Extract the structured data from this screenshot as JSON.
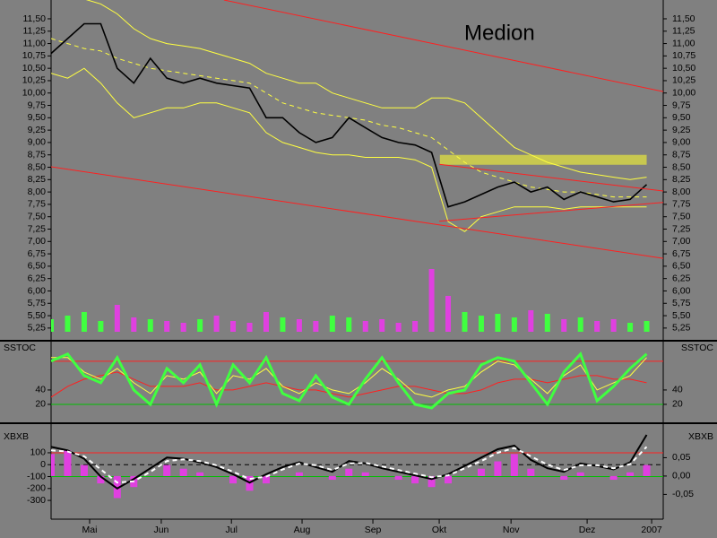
{
  "chart_data": [
    {
      "type": "line",
      "title": "Medion",
      "title_color": "#ff1010",
      "x": [
        0,
        1,
        2,
        3,
        4,
        5,
        6,
        7,
        8,
        9,
        10,
        11,
        12,
        13,
        14,
        15,
        16,
        17,
        18,
        19,
        20,
        21,
        22,
        23,
        24,
        25,
        26,
        27,
        28,
        29,
        30,
        31,
        32,
        33,
        34,
        35,
        36
      ],
      "xlim": [
        0,
        37
      ],
      "ylim": [
        5.03,
        11.88
      ],
      "yticks": [
        {
          "value": 5.25,
          "label": "5,25"
        },
        {
          "value": 5.5,
          "label": "5,50"
        },
        {
          "value": 5.75,
          "label": "5,75"
        },
        {
          "value": 6.0,
          "label": "6,00"
        },
        {
          "value": 6.25,
          "label": "6,25"
        },
        {
          "value": 6.5,
          "label": "6,50"
        },
        {
          "value": 6.75,
          "label": "6,75"
        },
        {
          "value": 7.0,
          "label": "7,00"
        },
        {
          "value": 7.25,
          "label": "7,25"
        },
        {
          "value": 7.5,
          "label": "7,50"
        },
        {
          "value": 7.75,
          "label": "7,75"
        },
        {
          "value": 8.0,
          "label": "8,00"
        },
        {
          "value": 8.25,
          "label": "8,25"
        },
        {
          "value": 8.5,
          "label": "8,50"
        },
        {
          "value": 8.75,
          "label": "8,75"
        },
        {
          "value": 9.0,
          "label": "9,00"
        },
        {
          "value": 9.25,
          "label": "9,25"
        },
        {
          "value": 9.5,
          "label": "9,50"
        },
        {
          "value": 9.75,
          "label": "9,75"
        },
        {
          "value": 10.0,
          "label": "10,00"
        },
        {
          "value": 10.25,
          "label": "10,25"
        },
        {
          "value": 10.5,
          "label": "10,50"
        },
        {
          "value": 10.75,
          "label": "10,75"
        },
        {
          "value": 11.0,
          "label": "11,00"
        },
        {
          "value": 11.25,
          "label": "11,25"
        },
        {
          "value": 11.5,
          "label": "11,50"
        }
      ],
      "zones": [
        {
          "x": [
            23.5,
            36.0
          ],
          "y": [
            8.55,
            8.75
          ],
          "color": "#c8c850"
        }
      ],
      "series": [
        {
          "color": "#ffff40",
          "values": [
            11.9,
            11.9,
            11.9,
            11.8,
            11.6,
            11.3,
            11.1,
            11.0,
            10.95,
            10.9,
            10.8,
            10.7,
            10.6,
            10.4,
            10.3,
            10.2,
            10.2,
            10.0,
            9.9,
            9.8,
            9.7,
            9.7,
            9.7,
            9.9,
            9.9,
            9.8,
            9.5,
            9.2,
            8.9,
            8.75,
            8.6,
            8.5,
            8.4,
            8.35,
            8.3,
            8.25,
            8.3
          ]
        },
        {
          "color": "#ffff40",
          "values": [
            10.4,
            10.3,
            10.5,
            10.2,
            9.8,
            9.5,
            9.6,
            9.7,
            9.7,
            9.8,
            9.8,
            9.7,
            9.6,
            9.2,
            9.0,
            8.9,
            8.8,
            8.75,
            8.75,
            8.7,
            8.7,
            8.7,
            8.65,
            8.5,
            7.4,
            7.2,
            7.5,
            7.6,
            7.7,
            7.7,
            7.7,
            7.65,
            7.7,
            7.7,
            7.7,
            7.7,
            7.7
          ]
        },
        {
          "color": "#ffff40",
          "dash": true,
          "values": [
            11.1,
            11.0,
            10.9,
            10.85,
            10.7,
            10.6,
            10.5,
            10.45,
            10.4,
            10.35,
            10.3,
            10.25,
            10.2,
            10.0,
            9.8,
            9.7,
            9.6,
            9.55,
            9.5,
            9.45,
            9.35,
            9.3,
            9.2,
            9.1,
            8.85,
            8.6,
            8.4,
            8.3,
            8.2,
            8.1,
            8.05,
            8.0,
            8.0,
            7.95,
            7.9,
            7.9,
            7.9
          ]
        },
        {
          "color": "#000000",
          "width": 1.6,
          "values": [
            10.8,
            11.1,
            11.4,
            11.4,
            10.5,
            10.2,
            10.7,
            10.3,
            10.2,
            10.3,
            10.2,
            10.15,
            10.1,
            9.5,
            9.5,
            9.2,
            9.0,
            9.1,
            9.5,
            9.3,
            9.1,
            9.0,
            8.95,
            8.8,
            7.7,
            7.8,
            7.95,
            8.1,
            8.2,
            8.0,
            8.1,
            7.85,
            8.0,
            7.9,
            7.8,
            7.85,
            8.15
          ]
        },
        {
          "color": "#ff2020",
          "x": [
            10.45,
            37
          ],
          "values": [
            11.88,
            10.03
          ]
        },
        {
          "color": "#ff2020",
          "x": [
            0,
            37
          ],
          "values": [
            8.51,
            6.66
          ]
        },
        {
          "color": "#ff2020",
          "x": [
            23.46,
            37
          ],
          "values": [
            8.56,
            8.02
          ]
        },
        {
          "color": "#ff2020",
          "x": [
            23.46,
            37
          ],
          "values": [
            7.41,
            7.79
          ]
        }
      ],
      "volume": {
        "up_color": "#40ff40",
        "down_color": "#e040e0",
        "values": [
          14,
          18,
          22,
          12,
          30,
          16,
          14,
          12,
          10,
          14,
          18,
          12,
          10,
          22,
          16,
          14,
          12,
          18,
          16,
          12,
          14,
          10,
          12,
          70,
          40,
          22,
          18,
          20,
          16,
          24,
          20,
          14,
          16,
          12,
          14,
          10,
          12
        ]
      }
    },
    {
      "type": "line",
      "label": "SSTOC",
      "ylim": [
        -3.75,
        106
      ],
      "yticks": [
        20,
        40
      ],
      "levels": [
        {
          "value": 80,
          "color": "#ff2020"
        },
        {
          "value": 20,
          "color": "#00c000"
        }
      ],
      "series": [
        {
          "color": "#ff2020",
          "values": [
            30,
            45,
            55,
            60,
            65,
            55,
            45,
            45,
            45,
            50,
            40,
            40,
            45,
            50,
            45,
            40,
            40,
            35,
            30,
            35,
            40,
            45,
            45,
            40,
            35,
            35,
            40,
            50,
            55,
            55,
            50,
            55,
            60,
            60,
            55,
            55,
            50
          ]
        },
        {
          "color": "#ffff40",
          "values": [
            85,
            85,
            65,
            55,
            70,
            50,
            35,
            60,
            55,
            65,
            35,
            60,
            55,
            70,
            45,
            35,
            50,
            40,
            35,
            50,
            70,
            55,
            35,
            30,
            40,
            45,
            65,
            80,
            75,
            55,
            35,
            60,
            75,
            40,
            50,
            60,
            85
          ]
        },
        {
          "color": "#40ff40",
          "width": 3,
          "values": [
            80,
            90,
            60,
            50,
            85,
            40,
            20,
            70,
            50,
            75,
            20,
            75,
            50,
            85,
            35,
            25,
            60,
            30,
            20,
            55,
            85,
            50,
            20,
            15,
            35,
            40,
            75,
            85,
            80,
            50,
            20,
            65,
            90,
            25,
            45,
            70,
            90
          ]
        }
      ]
    },
    {
      "type": "line",
      "label": "XBXB",
      "ylim": [
        -450,
        333
      ],
      "yticks": [
        100,
        0,
        -100,
        -200,
        -300
      ],
      "y2lim": [
        -0.115,
        0.139
      ],
      "y2ticks": [
        {
          "value": 0.05,
          "label": "0,05"
        },
        {
          "value": 0.0,
          "label": "0,00"
        },
        {
          "value": -0.05,
          "label": "-0,05"
        }
      ],
      "xticks": [
        {
          "value": 2.33,
          "label": "Mai"
        },
        {
          "value": 6.66,
          "label": "Jun"
        },
        {
          "value": 10.9,
          "label": "Jul"
        },
        {
          "value": 15.17,
          "label": "Aug"
        },
        {
          "value": 19.45,
          "label": "Sep"
        },
        {
          "value": 23.46,
          "label": "Okt"
        },
        {
          "value": 27.8,
          "label": "Nov"
        },
        {
          "value": 32.4,
          "label": "Dez"
        },
        {
          "value": 36.3,
          "label": "2007"
        }
      ],
      "levels": [
        {
          "value": 100,
          "color": "#ff2020"
        },
        {
          "value": 0,
          "color": "#000000",
          "dash": true
        },
        {
          "value": -100,
          "color": "#00c000"
        }
      ],
      "histogram": {
        "axis": "y2",
        "color": "#e040e0",
        "values": [
          0.06,
          0.07,
          0.03,
          -0.02,
          -0.06,
          -0.03,
          0.0,
          0.03,
          0.02,
          0.01,
          0.0,
          -0.02,
          -0.04,
          -0.02,
          0.0,
          0.01,
          0.0,
          -0.01,
          0.02,
          0.01,
          0.0,
          -0.01,
          -0.02,
          -0.03,
          -0.02,
          0.0,
          0.02,
          0.04,
          0.06,
          0.02,
          0.0,
          -0.01,
          0.01,
          0.0,
          -0.01,
          0.01,
          0.03
        ]
      },
      "series": [
        {
          "color": "#000000",
          "width": 2,
          "values": [
            150,
            120,
            50,
            -100,
            -200,
            -120,
            -30,
            60,
            50,
            20,
            -20,
            -80,
            -150,
            -80,
            -20,
            20,
            -20,
            -60,
            30,
            10,
            -30,
            -60,
            -90,
            -120,
            -80,
            -10,
            60,
            130,
            160,
            40,
            -30,
            -60,
            10,
            -10,
            -40,
            20,
            250
          ]
        },
        {
          "color": "#ffffff",
          "width": 2,
          "dash": true,
          "values": [
            120,
            110,
            70,
            -40,
            -150,
            -140,
            -60,
            30,
            45,
            30,
            -5,
            -60,
            -120,
            -100,
            -40,
            10,
            -5,
            -45,
            10,
            15,
            -15,
            -45,
            -75,
            -105,
            -90,
            -30,
            30,
            100,
            140,
            70,
            0,
            -45,
            -5,
            -5,
            -30,
            5,
            150
          ]
        }
      ]
    }
  ]
}
